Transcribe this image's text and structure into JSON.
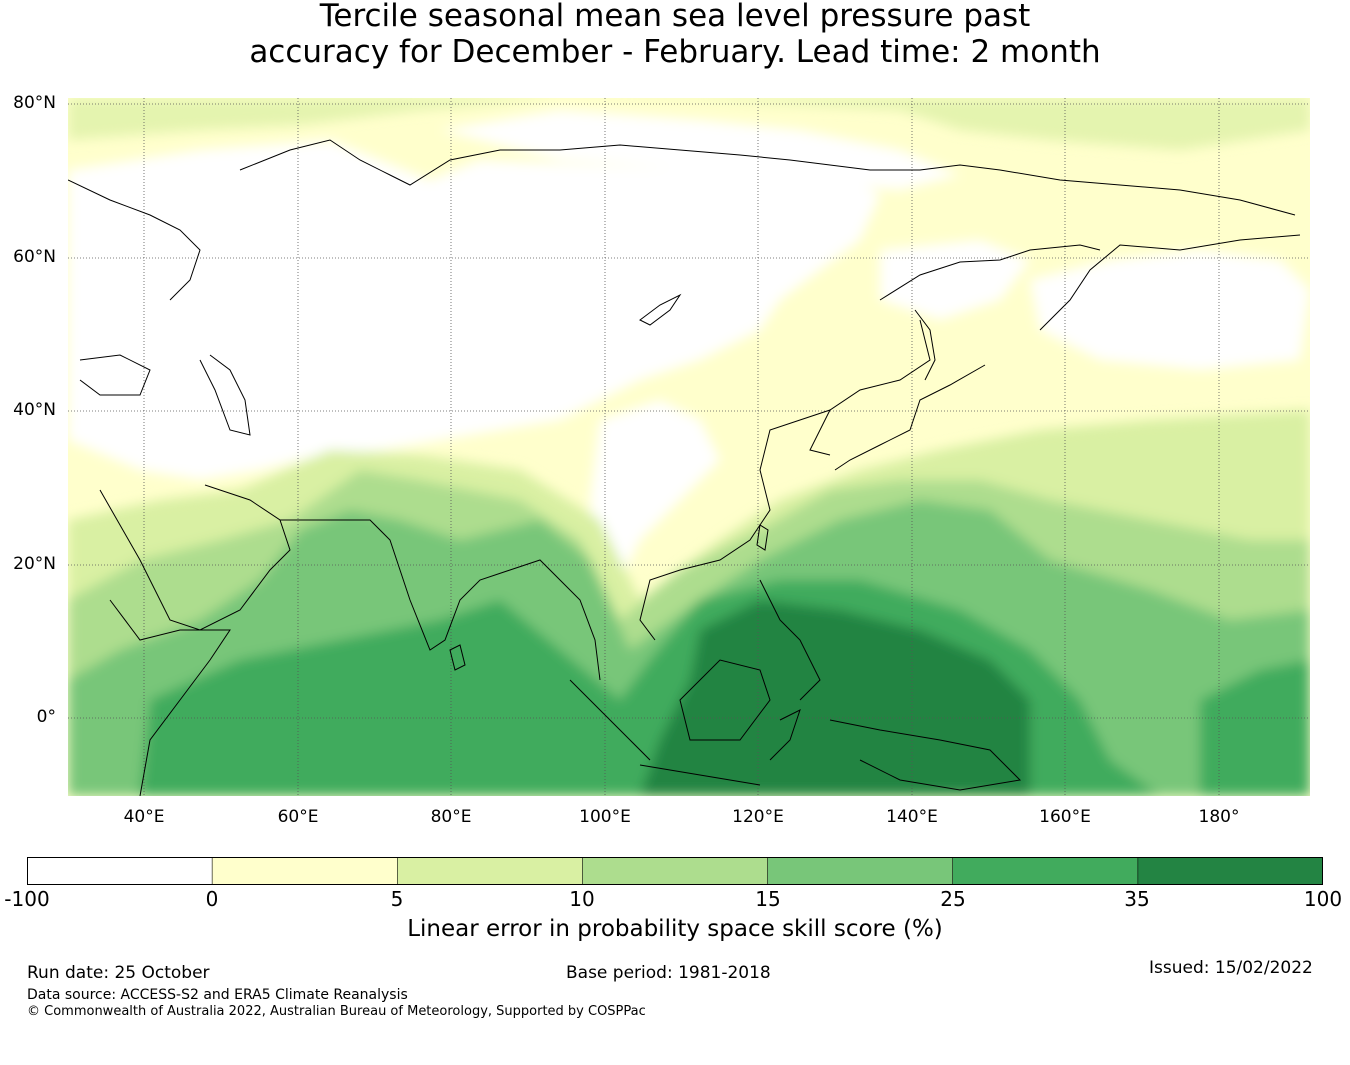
{
  "title": {
    "line1": "Tercile seasonal mean sea level pressure past",
    "line2": "accuracy for December - February. Lead time: 2 month"
  },
  "map": {
    "projection": "equirectangular",
    "lon_range": [
      30,
      192
    ],
    "lat_range": [
      -10,
      81
    ],
    "lat_labels": [
      "80°N",
      "60°N",
      "40°N",
      "20°N",
      "0°"
    ],
    "lon_labels": [
      "40°E",
      "60°E",
      "80°E",
      "100°E",
      "120°E",
      "140°E",
      "160°E",
      "180°"
    ],
    "gridlines": true
  },
  "colorbar": {
    "ticks": [
      "-100",
      "0",
      "5",
      "10",
      "15",
      "25",
      "35",
      "100"
    ],
    "colors": [
      "#ffffff",
      "#ffffcc",
      "#d9f0a3",
      "#addd8e",
      "#78c679",
      "#41ab5d",
      "#238443"
    ],
    "label": "Linear error in probability space skill score (%)"
  },
  "footer": {
    "run_date": "Run date: 25 October",
    "base_period": "Base period: 1981-2018",
    "issued": "Issued: 15/02/2022",
    "data_source": "Data source: ACCESS-S2 and ERA5 Climate Reanalysis",
    "copyright": "© Commonwealth of Australia 2022, Australian Bureau of Meteorology, Supported by COSPPac"
  }
}
